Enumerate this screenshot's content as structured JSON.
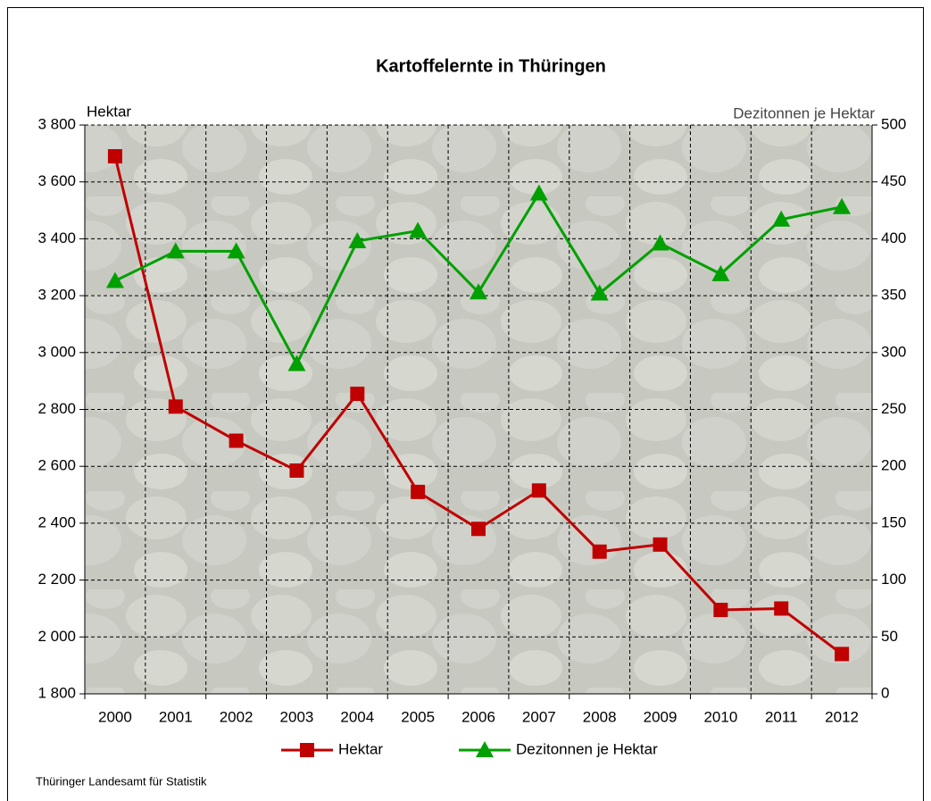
{
  "chart_data": {
    "type": "line",
    "title": "Kartoffelernte  in Thüringen",
    "y_label": "Hektar",
    "y2_label": "Dezitonnen je Hektar",
    "source": "Thüringer  Landesamt für Statistik",
    "categories": [
      "2000",
      "2001",
      "2002",
      "2003",
      "2004",
      "2005",
      "2006",
      "2007",
      "2008",
      "2009",
      "2010",
      "2011",
      "2012"
    ],
    "series": [
      {
        "name": "Hektar",
        "color": "#c00000",
        "marker": "square",
        "values": [
          3690,
          2810,
          2690,
          2585,
          2855,
          2510,
          2380,
          2515,
          2300,
          2325,
          2095,
          2100,
          1940
        ]
      },
      {
        "name": "Dezitonnen je Hektar",
        "color": "#00a000",
        "marker": "triangle",
        "axis": "y2",
        "values": [
          363,
          389,
          389,
          290,
          398,
          407,
          353,
          440,
          352,
          396,
          369,
          417,
          428
        ]
      }
    ],
    "ylim": [
      1800,
      3800
    ],
    "yticks": [
      {
        "value": 1800,
        "label": "1 800"
      },
      {
        "value": 2000,
        "label": "2 000"
      },
      {
        "value": 2200,
        "label": "2 200"
      },
      {
        "value": 2400,
        "label": "2 400"
      },
      {
        "value": 2600,
        "label": "2 600"
      },
      {
        "value": 2800,
        "label": "2 800"
      },
      {
        "value": 3000,
        "label": "3 000"
      },
      {
        "value": 3200,
        "label": "3 200"
      },
      {
        "value": 3400,
        "label": "3 400"
      },
      {
        "value": 3600,
        "label": "3 600"
      },
      {
        "value": 3800,
        "label": "3 800"
      }
    ],
    "y2lim": [
      0,
      500
    ],
    "y2ticks": [
      0,
      50,
      100,
      150,
      200,
      250,
      300,
      350,
      400,
      450,
      500
    ],
    "grid": true,
    "legend": "bottom"
  }
}
